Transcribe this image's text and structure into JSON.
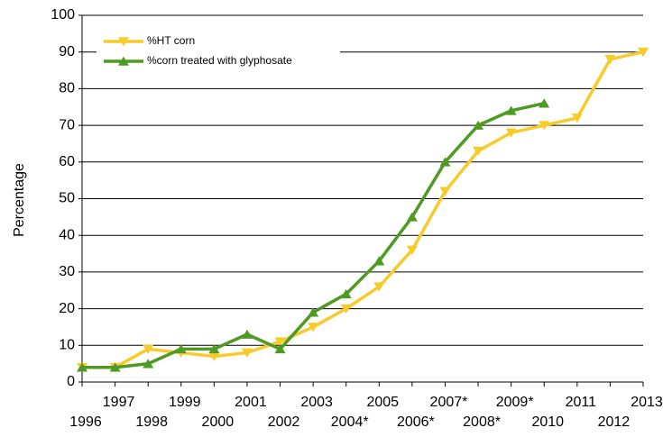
{
  "chart_data": {
    "type": "line",
    "ylabel": "Percentage",
    "categories": [
      "1996",
      "1997",
      "1998",
      "1999",
      "2000",
      "2001",
      "2002",
      "2003",
      "2004*",
      "2005",
      "2006*",
      "2007*",
      "2008*",
      "2009*",
      "2010",
      "2011",
      "2012",
      "2013"
    ],
    "series": [
      {
        "name": "%HT corn",
        "color": "#f7cb2a",
        "marker": "down-triangle",
        "values": [
          4,
          4,
          9,
          8,
          7,
          8,
          11,
          15,
          20,
          26,
          36,
          52,
          63,
          68,
          70,
          72,
          88,
          90
        ]
      },
      {
        "name": "%corn treated with glyphosate",
        "color": "#4f9a23",
        "marker": "up-triangle",
        "values": [
          4,
          4,
          5,
          9,
          9,
          13,
          9,
          19,
          24,
          33,
          45,
          60,
          70,
          74,
          76,
          null,
          null,
          null
        ]
      }
    ],
    "ylim": [
      0,
      100
    ],
    "yticks": [
      0,
      10,
      20,
      30,
      40,
      50,
      60,
      70,
      80,
      90,
      100
    ],
    "grid": true,
    "legend": "upper left"
  }
}
